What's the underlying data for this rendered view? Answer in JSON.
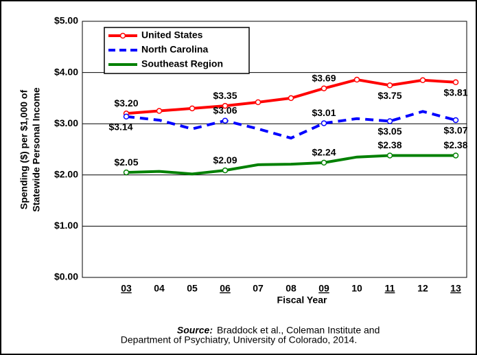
{
  "chart_data": {
    "type": "line",
    "ylabel": [
      "Spending ($) per $1,000 of",
      "Statewide Personal Income"
    ],
    "xlabel": "Fiscal Year",
    "categories": [
      "03",
      "04",
      "05",
      "06",
      "07",
      "08",
      "09",
      "10",
      "11",
      "12",
      "13"
    ],
    "underline": [
      true,
      false,
      false,
      true,
      false,
      false,
      true,
      false,
      true,
      false,
      true
    ],
    "series": [
      {
        "name": "United States",
        "color": "#ff0000",
        "dash": "solid",
        "markers": "all",
        "values": [
          3.2,
          3.25,
          3.3,
          3.35,
          3.42,
          3.5,
          3.69,
          3.86,
          3.75,
          3.85,
          3.81
        ],
        "value_labels": [
          "$3.20",
          null,
          null,
          "$3.35",
          null,
          null,
          "$3.69",
          null,
          "$3.75",
          null,
          "$3.81"
        ],
        "label_side": [
          "above",
          null,
          null,
          "above",
          null,
          null,
          "above",
          null,
          "below",
          null,
          "below"
        ]
      },
      {
        "name": "North Carolina",
        "color": "#0000ff",
        "dash": "dashed",
        "markers": "labeled",
        "values": [
          3.14,
          3.07,
          2.9,
          3.06,
          2.9,
          2.72,
          3.01,
          3.1,
          3.05,
          3.24,
          3.07
        ],
        "value_labels": [
          "$3.14",
          null,
          null,
          "$3.06",
          null,
          null,
          "$3.01",
          null,
          "$3.05",
          null,
          "$3.07"
        ],
        "label_side": [
          "below",
          null,
          null,
          "above",
          null,
          null,
          "above",
          null,
          "below",
          null,
          "below"
        ]
      },
      {
        "name": "Southeast Region",
        "color": "#008000",
        "dash": "solid",
        "markers": "labeled",
        "values": [
          2.05,
          2.07,
          2.02,
          2.09,
          2.2,
          2.21,
          2.24,
          2.35,
          2.38,
          2.38,
          2.38
        ],
        "value_labels": [
          "$2.05",
          null,
          null,
          "$2.09",
          null,
          null,
          "$2.24",
          null,
          "$2.38",
          null,
          "$2.38"
        ],
        "label_side": [
          "above",
          null,
          null,
          "above",
          null,
          null,
          "above",
          null,
          "above",
          null,
          "above"
        ]
      }
    ],
    "ylim": [
      0,
      5
    ],
    "yticks": [
      {
        "value": 0,
        "label": "$0.00"
      },
      {
        "value": 1,
        "label": "$1.00"
      },
      {
        "value": 2,
        "label": "$2.00"
      },
      {
        "value": 3,
        "label": "$3.00"
      },
      {
        "value": 4,
        "label": "$4.00"
      },
      {
        "value": 5,
        "label": "$5.00"
      }
    ],
    "grid": true,
    "legend": "top-left",
    "source": {
      "label": "Source:",
      "lines": [
        "Braddock et al., Coleman Institute and",
        "Department of Psychiatry, University of Colorado, 2014."
      ]
    }
  }
}
